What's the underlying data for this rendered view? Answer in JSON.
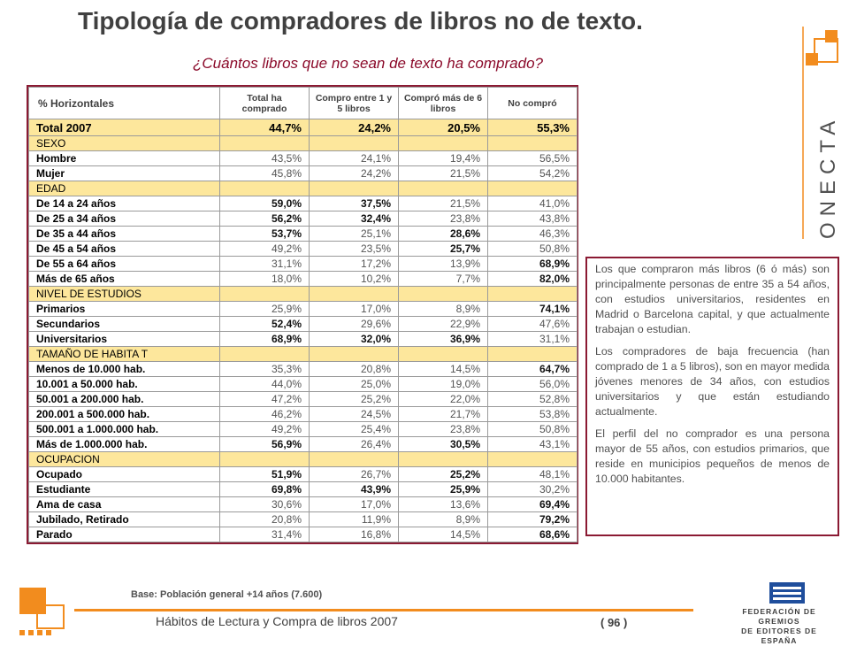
{
  "page": {
    "title": "Tipología de compradores de libros no de texto.",
    "subtitle": "¿Cuántos libros que no sean de texto ha comprado?",
    "brand": "ONECTA",
    "brand_initial": "C",
    "base_note": "Base: Población general +14 años (7.600)",
    "footer_title": "Hábitos de Lectura y Compra de libros 2007",
    "page_number": "( 96 )",
    "federation_line1": "FEDERACIÓN DE GREMIOS",
    "federation_line2": "DE EDITORES DE ESPAÑA"
  },
  "colors": {
    "accent": "#8b1a33",
    "highlight_row": "#fde79c",
    "orange": "#f28c1e",
    "federation_blue": "#1f4e9c"
  },
  "table": {
    "headers": [
      "% Horizontales",
      "Total ha comprado",
      "Compro entre 1 y 5 libros",
      "Compró más de 6 libros",
      "No compró"
    ],
    "rows": [
      {
        "type": "total",
        "label": "Total 2007",
        "values": [
          "44,7%",
          "24,2%",
          "20,5%",
          "55,3%"
        ],
        "bold": [
          true,
          true,
          true,
          true
        ]
      },
      {
        "type": "section",
        "label": "SEXO"
      },
      {
        "type": "data",
        "label": "Hombre",
        "values": [
          "43,5%",
          "24,1%",
          "19,4%",
          "56,5%"
        ],
        "bold": [
          false,
          false,
          false,
          false
        ]
      },
      {
        "type": "data",
        "label": "Mujer",
        "values": [
          "45,8%",
          "24,2%",
          "21,5%",
          "54,2%"
        ],
        "bold": [
          false,
          false,
          false,
          false
        ]
      },
      {
        "type": "section",
        "label": "EDAD"
      },
      {
        "type": "data",
        "label": "De 14 a 24 años",
        "values": [
          "59,0%",
          "37,5%",
          "21,5%",
          "41,0%"
        ],
        "bold": [
          true,
          true,
          false,
          false
        ]
      },
      {
        "type": "data",
        "label": "De 25 a 34 años",
        "values": [
          "56,2%",
          "32,4%",
          "23,8%",
          "43,8%"
        ],
        "bold": [
          true,
          true,
          false,
          false
        ]
      },
      {
        "type": "data",
        "label": "De 35 a 44 años",
        "values": [
          "53,7%",
          "25,1%",
          "28,6%",
          "46,3%"
        ],
        "bold": [
          true,
          false,
          true,
          false
        ]
      },
      {
        "type": "data",
        "label": "De 45 a 54 años",
        "values": [
          "49,2%",
          "23,5%",
          "25,7%",
          "50,8%"
        ],
        "bold": [
          false,
          false,
          true,
          false
        ]
      },
      {
        "type": "data",
        "label": "De 55 a 64 años",
        "values": [
          "31,1%",
          "17,2%",
          "13,9%",
          "68,9%"
        ],
        "bold": [
          false,
          false,
          false,
          true
        ]
      },
      {
        "type": "data",
        "label": "Más de 65 años",
        "values": [
          "18,0%",
          "10,2%",
          "7,7%",
          "82,0%"
        ],
        "bold": [
          false,
          false,
          false,
          true
        ]
      },
      {
        "type": "section",
        "label": "NIVEL DE ESTUDIOS"
      },
      {
        "type": "data",
        "label": "Primarios",
        "values": [
          "25,9%",
          "17,0%",
          "8,9%",
          "74,1%"
        ],
        "bold": [
          false,
          false,
          false,
          true
        ]
      },
      {
        "type": "data",
        "label": "Secundarios",
        "values": [
          "52,4%",
          "29,6%",
          "22,9%",
          "47,6%"
        ],
        "bold": [
          true,
          false,
          false,
          false
        ]
      },
      {
        "type": "data",
        "label": "Universitarios",
        "values": [
          "68,9%",
          "32,0%",
          "36,9%",
          "31,1%"
        ],
        "bold": [
          true,
          true,
          true,
          false
        ]
      },
      {
        "type": "section",
        "label": "TAMAÑO DE HABITA T"
      },
      {
        "type": "data",
        "label": "Menos de 10.000 hab.",
        "values": [
          "35,3%",
          "20,8%",
          "14,5%",
          "64,7%"
        ],
        "bold": [
          false,
          false,
          false,
          true
        ]
      },
      {
        "type": "data",
        "label": "10.001 a 50.000 hab.",
        "values": [
          "44,0%",
          "25,0%",
          "19,0%",
          "56,0%"
        ],
        "bold": [
          false,
          false,
          false,
          false
        ]
      },
      {
        "type": "data",
        "label": "50.001 a 200.000 hab.",
        "values": [
          "47,2%",
          "25,2%",
          "22,0%",
          "52,8%"
        ],
        "bold": [
          false,
          false,
          false,
          false
        ]
      },
      {
        "type": "data",
        "label": "200.001 a 500.000 hab.",
        "values": [
          "46,2%",
          "24,5%",
          "21,7%",
          "53,8%"
        ],
        "bold": [
          false,
          false,
          false,
          false
        ]
      },
      {
        "type": "data",
        "label": "500.001 a 1.000.000 hab.",
        "values": [
          "49,2%",
          "25,4%",
          "23,8%",
          "50,8%"
        ],
        "bold": [
          false,
          false,
          false,
          false
        ]
      },
      {
        "type": "data",
        "label": "Más de 1.000.000 hab.",
        "values": [
          "56,9%",
          "26,4%",
          "30,5%",
          "43,1%"
        ],
        "bold": [
          true,
          false,
          true,
          false
        ]
      },
      {
        "type": "section",
        "label": "OCUPACION"
      },
      {
        "type": "data",
        "label": "Ocupado",
        "values": [
          "51,9%",
          "26,7%",
          "25,2%",
          "48,1%"
        ],
        "bold": [
          true,
          false,
          true,
          false
        ]
      },
      {
        "type": "data",
        "label": "Estudiante",
        "values": [
          "69,8%",
          "43,9%",
          "25,9%",
          "30,2%"
        ],
        "bold": [
          true,
          true,
          true,
          false
        ]
      },
      {
        "type": "data",
        "label": "Ama de casa",
        "values": [
          "30,6%",
          "17,0%",
          "13,6%",
          "69,4%"
        ],
        "bold": [
          false,
          false,
          false,
          true
        ]
      },
      {
        "type": "data",
        "label": "Jubilado, Retirado",
        "values": [
          "20,8%",
          "11,9%",
          "8,9%",
          "79,2%"
        ],
        "bold": [
          false,
          false,
          false,
          true
        ]
      },
      {
        "type": "data",
        "label": "Parado",
        "values": [
          "31,4%",
          "16,8%",
          "14,5%",
          "68,6%"
        ],
        "bold": [
          false,
          false,
          false,
          true
        ]
      }
    ]
  },
  "commentary": [
    "Los que compraron más libros (6 ó más) son principalmente personas de entre 35 a 54 años, con estudios universitarios, residentes en Madrid o Barcelona capital, y que actualmente trabajan o estudian.",
    "Los compradores de baja frecuencia (han comprado de 1 a 5 libros), son en mayor medida jóvenes menores de 34 años, con estudios universitarios y que están estudiando actualmente.",
    "El perfil del no comprador es una persona mayor de 55 años, con estudios primarios, que reside en municipios pequeños de menos de 10.000 habitantes."
  ]
}
